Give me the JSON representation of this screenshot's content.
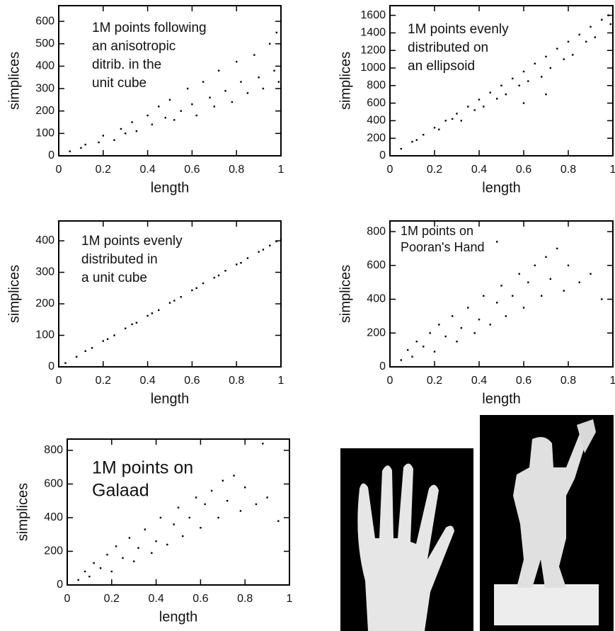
{
  "chart_data": [
    {
      "type": "scatter",
      "color": "#000000",
      "annotation": [
        "1M points following",
        "an anisotropic",
        "ditrib. in the",
        "unit cube"
      ],
      "x_label": "length",
      "y_label": "simplices",
      "xlim": [
        0,
        1
      ],
      "ylim": [
        0,
        670
      ],
      "xticks": [
        0,
        0.2,
        0.4,
        0.6,
        0.8,
        1
      ],
      "yticks": [
        0,
        100,
        200,
        300,
        400,
        500,
        600
      ],
      "x": [
        0.05,
        0.1,
        0.12,
        0.18,
        0.2,
        0.25,
        0.28,
        0.3,
        0.33,
        0.35,
        0.4,
        0.42,
        0.45,
        0.48,
        0.5,
        0.52,
        0.55,
        0.58,
        0.6,
        0.62,
        0.65,
        0.68,
        0.7,
        0.72,
        0.75,
        0.78,
        0.8,
        0.82,
        0.85,
        0.88,
        0.9,
        0.92,
        0.95,
        0.97,
        0.99,
        0.98
      ],
      "y": [
        20,
        35,
        50,
        60,
        90,
        70,
        120,
        100,
        150,
        110,
        180,
        140,
        220,
        170,
        250,
        160,
        200,
        300,
        230,
        180,
        330,
        260,
        220,
        380,
        290,
        240,
        420,
        330,
        280,
        450,
        350,
        300,
        500,
        380,
        330,
        550
      ]
    },
    {
      "type": "scatter",
      "color": "#000000",
      "annotation": [
        "1M points evenly",
        "distributed on",
        "an ellipsoid"
      ],
      "x_label": "length",
      "y_label": "simplices",
      "xlim": [
        0,
        1
      ],
      "ylim": [
        0,
        1710
      ],
      "xticks": [
        0,
        0.2,
        0.4,
        0.6,
        0.8,
        1
      ],
      "yticks": [
        0,
        200,
        400,
        600,
        800,
        1000,
        1200,
        1400,
        1600
      ],
      "x": [
        0.05,
        0.1,
        0.12,
        0.15,
        0.2,
        0.22,
        0.25,
        0.28,
        0.3,
        0.32,
        0.35,
        0.38,
        0.4,
        0.42,
        0.45,
        0.48,
        0.5,
        0.52,
        0.55,
        0.58,
        0.6,
        0.62,
        0.65,
        0.68,
        0.7,
        0.72,
        0.75,
        0.78,
        0.8,
        0.82,
        0.85,
        0.88,
        0.9,
        0.92,
        0.95,
        0.98,
        0.99,
        0.6,
        0.7
      ],
      "y": [
        80,
        160,
        180,
        240,
        320,
        300,
        400,
        420,
        480,
        400,
        560,
        520,
        640,
        560,
        720,
        650,
        800,
        700,
        880,
        800,
        960,
        850,
        1050,
        900,
        1130,
        1000,
        1220,
        1100,
        1300,
        1150,
        1380,
        1300,
        1470,
        1350,
        1550,
        1600,
        1500,
        600,
        700
      ]
    },
    {
      "type": "scatter",
      "color": "#000000",
      "annotation": [
        "1M points evenly",
        "distributed in",
        "a unit cube"
      ],
      "x_label": "length",
      "y_label": "simplices",
      "xlim": [
        0,
        1
      ],
      "ylim": [
        0,
        463
      ],
      "xticks": [
        0,
        0.2,
        0.4,
        0.6,
        0.8,
        1
      ],
      "yticks": [
        0,
        100,
        200,
        300,
        400
      ],
      "x": [
        0.03,
        0.08,
        0.12,
        0.15,
        0.2,
        0.22,
        0.25,
        0.3,
        0.33,
        0.35,
        0.4,
        0.42,
        0.45,
        0.5,
        0.52,
        0.55,
        0.6,
        0.62,
        0.65,
        0.7,
        0.72,
        0.75,
        0.8,
        0.82,
        0.85,
        0.9,
        0.92,
        0.95,
        0.98,
        1.0
      ],
      "y": [
        12,
        32,
        50,
        60,
        82,
        88,
        100,
        122,
        135,
        140,
        162,
        170,
        180,
        203,
        210,
        222,
        243,
        250,
        265,
        283,
        290,
        305,
        325,
        330,
        345,
        365,
        372,
        385,
        398,
        405
      ]
    },
    {
      "type": "scatter",
      "color": "#000000",
      "annotation": [
        "1M points on",
        "Pooran's Hand"
      ],
      "x_label": "length",
      "y_label": "simplices",
      "xlim": [
        0,
        1
      ],
      "ylim": [
        0,
        863
      ],
      "xticks": [
        0,
        0.2,
        0.4,
        0.6,
        0.8,
        1
      ],
      "yticks": [
        0,
        200,
        400,
        600,
        800
      ],
      "x": [
        0.05,
        0.08,
        0.1,
        0.12,
        0.15,
        0.18,
        0.2,
        0.22,
        0.25,
        0.28,
        0.3,
        0.32,
        0.35,
        0.38,
        0.4,
        0.42,
        0.45,
        0.48,
        0.5,
        0.52,
        0.55,
        0.58,
        0.6,
        0.62,
        0.65,
        0.68,
        0.7,
        0.72,
        0.75,
        0.78,
        0.8,
        0.85,
        0.9,
        0.95,
        0.48
      ],
      "y": [
        40,
        100,
        60,
        150,
        120,
        200,
        90,
        250,
        180,
        300,
        150,
        230,
        350,
        200,
        280,
        420,
        250,
        380,
        480,
        300,
        420,
        550,
        350,
        500,
        600,
        420,
        650,
        520,
        700,
        450,
        600,
        500,
        550,
        400,
        740
      ]
    },
    {
      "type": "scatter",
      "color": "#000000",
      "annotation": [
        "1M points on",
        "Galaad"
      ],
      "x_label": "length",
      "y_label": "simplices",
      "xlim": [
        0,
        1
      ],
      "ylim": [
        0,
        867
      ],
      "xticks": [
        0,
        0.2,
        0.4,
        0.6,
        0.8,
        1
      ],
      "yticks": [
        0,
        200,
        400,
        600,
        800
      ],
      "x": [
        0.05,
        0.08,
        0.1,
        0.12,
        0.15,
        0.18,
        0.2,
        0.22,
        0.25,
        0.28,
        0.3,
        0.32,
        0.35,
        0.38,
        0.4,
        0.42,
        0.45,
        0.48,
        0.5,
        0.52,
        0.55,
        0.58,
        0.6,
        0.62,
        0.65,
        0.68,
        0.7,
        0.72,
        0.75,
        0.78,
        0.8,
        0.85,
        0.88,
        0.9,
        0.95
      ],
      "y": [
        30,
        80,
        50,
        130,
        100,
        180,
        80,
        230,
        160,
        280,
        140,
        220,
        330,
        190,
        260,
        400,
        240,
        360,
        460,
        290,
        400,
        520,
        340,
        480,
        560,
        400,
        620,
        500,
        650,
        440,
        580,
        480,
        840,
        520,
        380
      ]
    }
  ]
}
